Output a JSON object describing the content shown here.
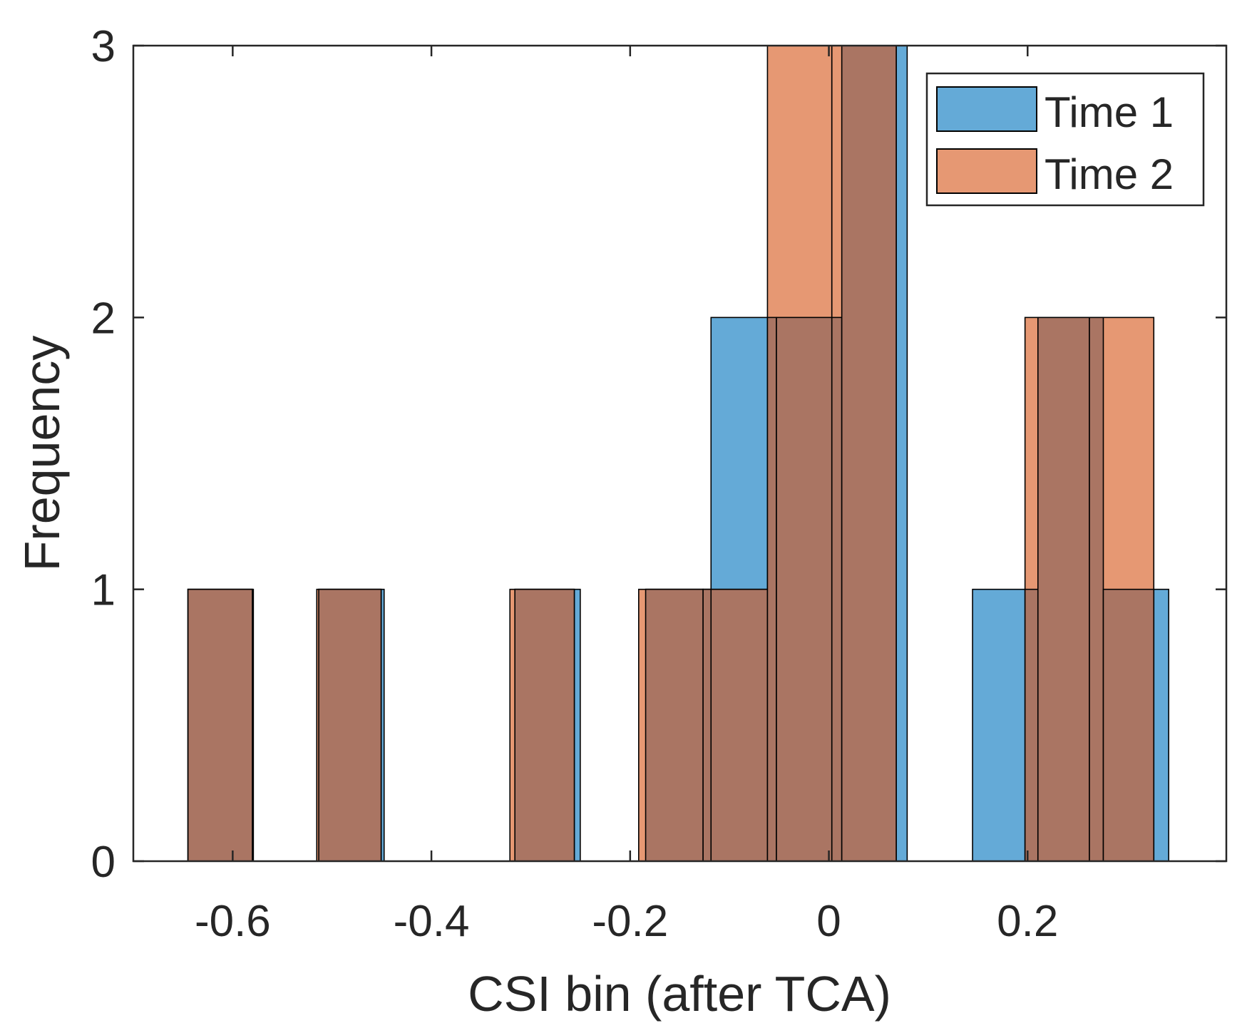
{
  "chart_data": {
    "type": "histogram",
    "title": "",
    "xlabel": "CSI bin (after TCA)",
    "ylabel": "Frequency",
    "xlim": [
      -0.7,
      0.4
    ],
    "ylim": [
      0,
      3
    ],
    "xticks": [
      -0.6,
      -0.4,
      -0.2,
      0,
      0.2
    ],
    "xtick_labels": [
      "-0.6",
      "-0.4",
      "-0.2",
      "0",
      "0.2"
    ],
    "yticks": [
      0,
      1,
      2,
      3
    ],
    "ytick_labels": [
      "0",
      "1",
      "2",
      "3"
    ],
    "legend_position": "top-right",
    "overlap_color": "#AA7563",
    "series": [
      {
        "name": "Time 1",
        "color": "#64AAD7",
        "bin_edges": [
          -0.645,
          -0.5792,
          -0.5134,
          -0.4476,
          -0.3818,
          -0.316,
          -0.2502,
          -0.1844,
          -0.1186,
          -0.0528,
          0.013,
          0.0788,
          0.1446,
          0.2104,
          0.2762,
          0.342
        ],
        "counts": [
          1,
          0,
          1,
          0,
          0,
          1,
          0,
          1,
          2,
          2,
          3,
          0,
          1,
          2,
          1
        ]
      },
      {
        "name": "Time 2",
        "color": "#E69873",
        "bin_edges": [
          -0.645,
          -0.5802,
          -0.5154,
          -0.4506,
          -0.3858,
          -0.321,
          -0.2562,
          -0.1914,
          -0.1266,
          -0.0618,
          0.003,
          0.0678,
          0.1326,
          0.1974,
          0.2622,
          0.327
        ],
        "counts": [
          1,
          0,
          1,
          0,
          0,
          1,
          0,
          1,
          1,
          3,
          3,
          0,
          0,
          2,
          2
        ]
      }
    ]
  }
}
